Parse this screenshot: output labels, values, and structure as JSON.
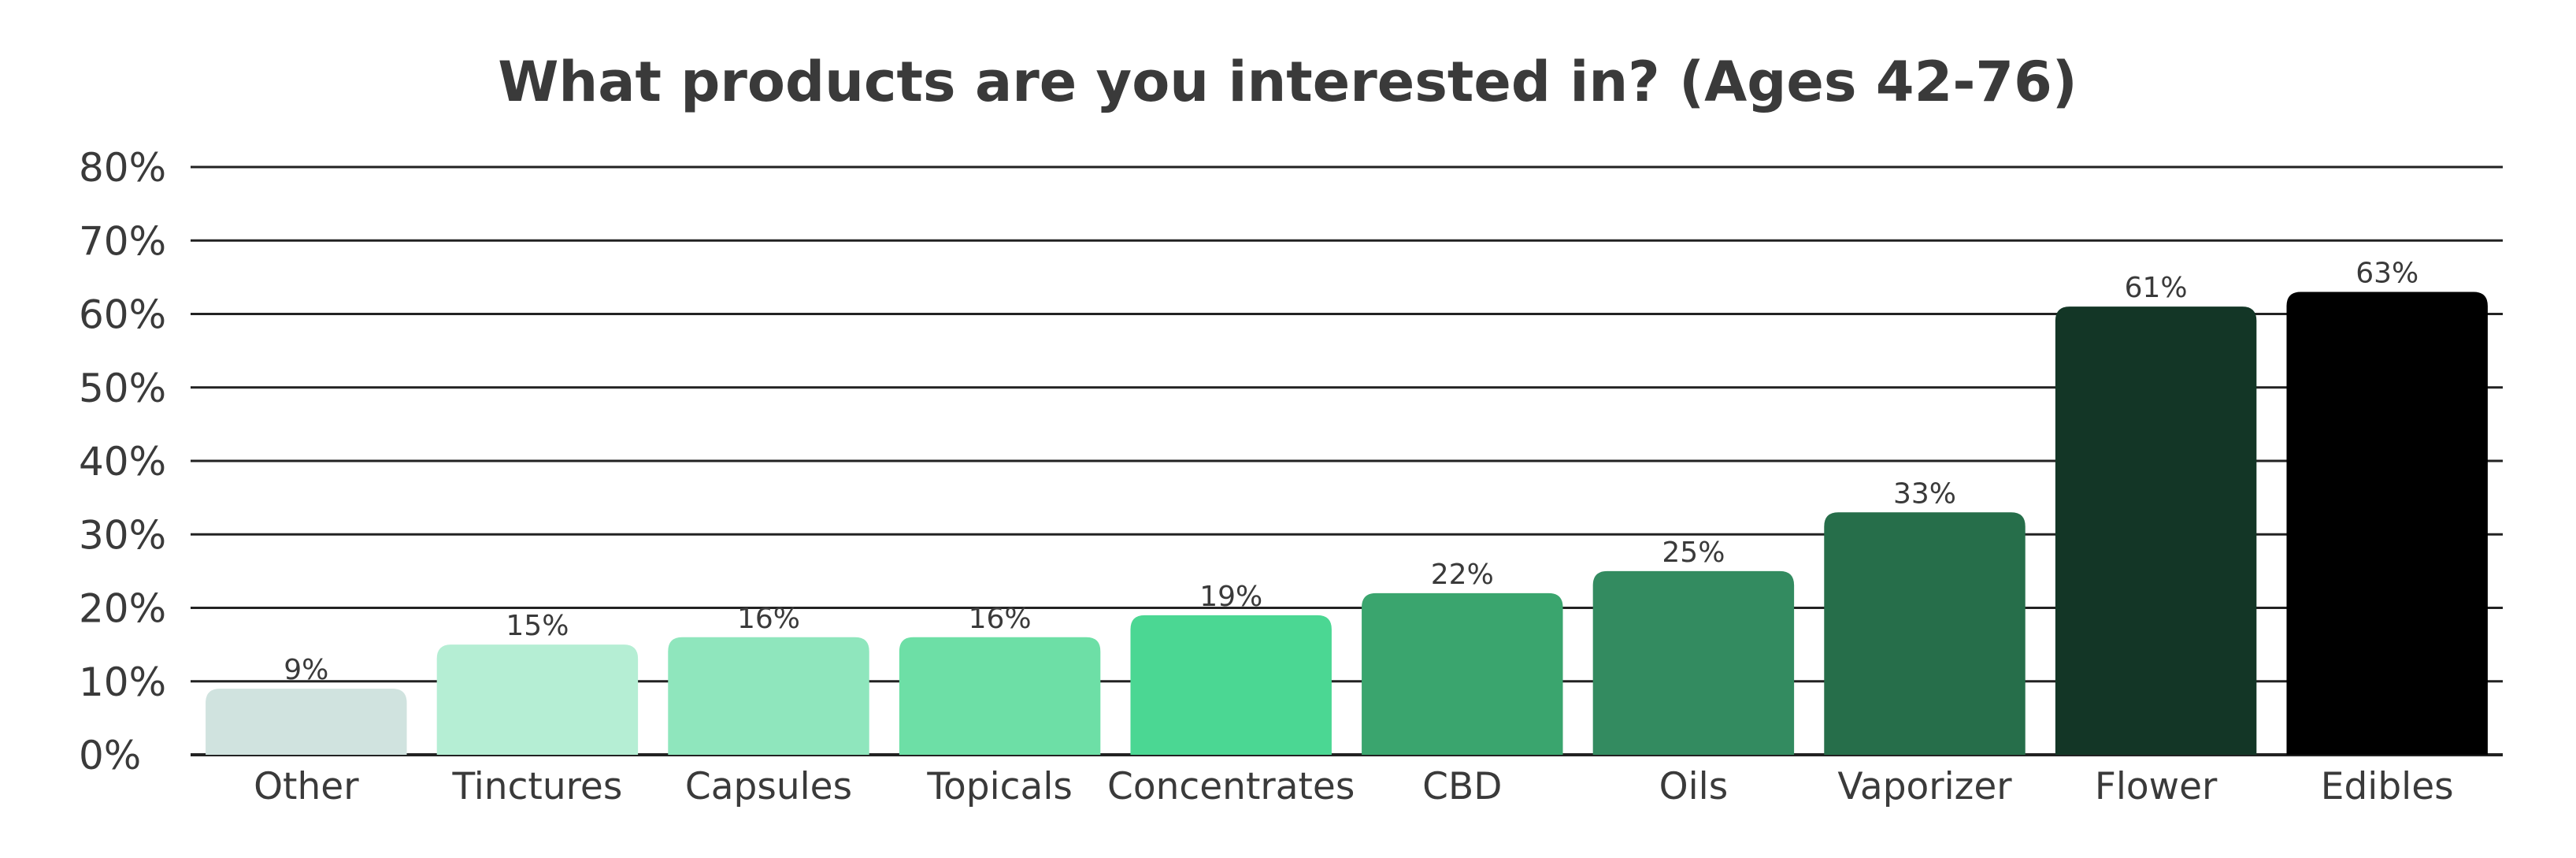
{
  "chart_data": {
    "type": "bar",
    "title": "What products are you interested in? (Ages 42-76)",
    "xlabel": "",
    "ylabel": "",
    "ylim": [
      0,
      80
    ],
    "ytick_values": [
      0,
      10,
      20,
      30,
      40,
      50,
      60,
      70,
      80
    ],
    "ytick_labels": [
      "0%",
      "10%",
      "20%",
      "30%",
      "40%",
      "50%",
      "60%",
      "70%",
      "80%"
    ],
    "grid": true,
    "legend": "none",
    "categories": [
      "Other",
      "Tinctures",
      "Capsules",
      "Topicals",
      "Concentrates",
      "CBD",
      "Oils",
      "Vaporizer",
      "Flower",
      "Edibles"
    ],
    "values": [
      9,
      15,
      16,
      16,
      19,
      22,
      25,
      33,
      61,
      63
    ],
    "data_labels": [
      "9%",
      "15%",
      "16%",
      "16%",
      "19%",
      "22%",
      "25%",
      "33%",
      "61%",
      "63%"
    ],
    "colors": [
      "#d0e3df",
      "#b5eed4",
      "#8fe6bd",
      "#6ddfa6",
      "#4bd793",
      "#3aa56e",
      "#338b60",
      "#266e4a",
      "#133626",
      "#000000"
    ]
  }
}
